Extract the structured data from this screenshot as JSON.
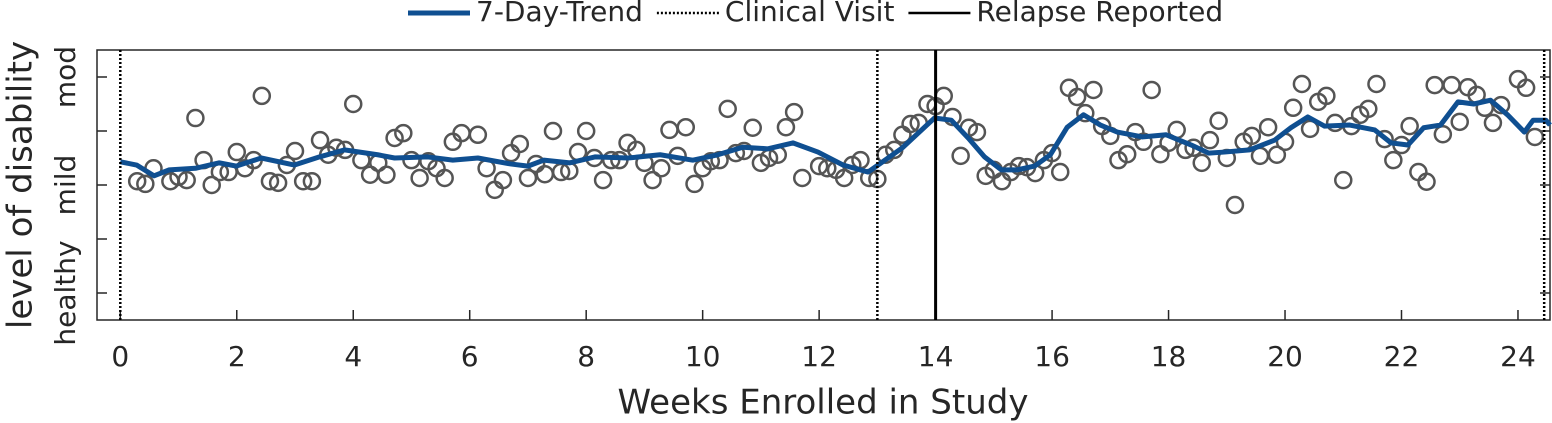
{
  "chart_data": {
    "type": "line",
    "x_label": "Weeks Enrolled in Study",
    "y_label": "level of disability",
    "xlim": [
      -0.4,
      24.55
    ],
    "ylim": [
      -0.5,
      4.5
    ],
    "xticks": [
      0,
      2,
      4,
      6,
      8,
      10,
      12,
      14,
      16,
      18,
      20,
      22,
      24
    ],
    "yticks": [
      {
        "value": 0,
        "label": "healthy"
      },
      {
        "value": 1,
        "label": null
      },
      {
        "value": 2,
        "label": "mild"
      },
      {
        "value": 3,
        "label": null
      },
      {
        "value": 4,
        "label": "mod"
      }
    ],
    "series": [
      {
        "name": "7-Day-Trend",
        "color": "#0f4f91",
        "x": [
          0,
          0.28,
          0.58,
          0.84,
          1.29,
          1.7,
          1.99,
          2.42,
          2.99,
          3.42,
          3.85,
          4.42,
          4.71,
          5.28,
          5.71,
          6.14,
          6.7,
          7.0,
          7.27,
          7.72,
          8.15,
          8.72,
          9.27,
          9.83,
          10.26,
          10.69,
          11.12,
          11.55,
          11.98,
          12.41,
          12.84,
          13.13,
          13.43,
          13.7,
          13.98,
          14.27,
          14.56,
          14.84,
          15.13,
          15.4,
          15.7,
          15.97,
          16.26,
          16.54,
          16.83,
          17.12,
          17.55,
          17.96,
          18.39,
          18.69,
          18.96,
          19.39,
          19.82,
          20.1,
          20.39,
          20.68,
          21.11,
          21.54,
          21.82,
          22.11,
          22.38,
          22.67,
          22.97,
          23.24,
          23.53,
          23.82,
          24.11,
          24.26,
          24.48,
          24.55
        ],
        "values": [
          2.43,
          2.37,
          2.17,
          2.28,
          2.31,
          2.41,
          2.35,
          2.5,
          2.37,
          2.52,
          2.65,
          2.56,
          2.5,
          2.52,
          2.46,
          2.5,
          2.39,
          2.35,
          2.46,
          2.41,
          2.52,
          2.5,
          2.56,
          2.46,
          2.56,
          2.7,
          2.67,
          2.78,
          2.61,
          2.37,
          2.24,
          2.46,
          2.69,
          2.96,
          3.24,
          3.2,
          2.87,
          2.52,
          2.28,
          2.28,
          2.35,
          2.56,
          3.07,
          3.3,
          3.11,
          2.98,
          2.89,
          2.93,
          2.74,
          2.59,
          2.61,
          2.65,
          2.83,
          3.06,
          3.26,
          3.09,
          3.11,
          3.02,
          2.78,
          2.74,
          3.06,
          3.11,
          3.54,
          3.5,
          3.57,
          3.3,
          2.98,
          3.2,
          3.2,
          3.11
        ]
      }
    ],
    "points": {
      "color": "#555555",
      "x": [
        0.29,
        0.43,
        0.57,
        0.86,
        1,
        1.14,
        1.29,
        1.43,
        1.57,
        1.71,
        1.86,
        2,
        2.14,
        2.29,
        2.43,
        2.57,
        2.71,
        2.86,
        3,
        3.14,
        3.29,
        3.43,
        3.57,
        3.71,
        3.86,
        4,
        4.14,
        4.29,
        4.43,
        4.57,
        4.71,
        4.86,
        5,
        5.14,
        5.29,
        5.43,
        5.57,
        5.71,
        5.86,
        6.14,
        6.29,
        6.43,
        6.57,
        6.71,
        6.86,
        7,
        7.14,
        7.29,
        7.43,
        7.57,
        7.71,
        7.86,
        8,
        8.14,
        8.29,
        8.43,
        8.57,
        8.71,
        8.86,
        9,
        9.14,
        9.29,
        9.43,
        9.57,
        9.71,
        9.86,
        10,
        10.14,
        10.29,
        10.43,
        10.57,
        10.71,
        10.86,
        11,
        11.14,
        11.29,
        11.43,
        11.57,
        11.71,
        12,
        12.14,
        12.29,
        12.43,
        12.57,
        12.71,
        12.86,
        13,
        13.14,
        13.29,
        13.43,
        13.57,
        13.71,
        13.86,
        14,
        14.14,
        14.29,
        14.43,
        14.57,
        14.71,
        14.86,
        15,
        15.14,
        15.29,
        15.43,
        15.57,
        15.71,
        15.86,
        16,
        16.14,
        16.29,
        16.43,
        16.57,
        16.71,
        16.86,
        17,
        17.14,
        17.29,
        17.43,
        17.57,
        17.71,
        17.86,
        18,
        18.14,
        18.29,
        18.43,
        18.57,
        18.71,
        18.86,
        19,
        19.14,
        19.29,
        19.43,
        19.57,
        19.71,
        19.86,
        20,
        20.14,
        20.29,
        20.43,
        20.57,
        20.71,
        20.86,
        21,
        21.14,
        21.29,
        21.43,
        21.57,
        21.71,
        21.86,
        22,
        22.14,
        22.29,
        22.43,
        22.57,
        22.71,
        22.86,
        23,
        23.14,
        23.29,
        23.43,
        23.57,
        23.71,
        24,
        24.14,
        24.29
      ],
      "values": [
        2.07,
        2.02,
        2.31,
        2.07,
        2.15,
        2.09,
        3.24,
        2.46,
        2.0,
        2.24,
        2.24,
        2.61,
        2.31,
        2.46,
        3.65,
        2.07,
        2.04,
        2.37,
        2.63,
        2.07,
        2.07,
        2.83,
        2.56,
        2.69,
        2.65,
        3.5,
        2.46,
        2.19,
        2.41,
        2.19,
        2.87,
        2.96,
        2.46,
        2.13,
        2.44,
        2.31,
        2.13,
        2.8,
        2.96,
        2.93,
        2.31,
        1.91,
        2.09,
        2.59,
        2.76,
        2.13,
        2.39,
        2.2,
        3.0,
        2.24,
        2.26,
        2.61,
        3.0,
        2.5,
        2.09,
        2.46,
        2.46,
        2.78,
        2.65,
        2.41,
        2.09,
        2.31,
        3.02,
        2.54,
        3.07,
        2.02,
        2.31,
        2.44,
        2.46,
        3.41,
        2.59,
        2.63,
        3.06,
        2.41,
        2.5,
        2.56,
        3.07,
        3.35,
        2.13,
        2.35,
        2.31,
        2.28,
        2.13,
        2.37,
        2.46,
        2.13,
        2.11,
        2.56,
        2.65,
        2.93,
        3.13,
        3.15,
        3.5,
        3.46,
        3.65,
        3.26,
        2.54,
        3.06,
        2.98,
        2.17,
        2.28,
        2.07,
        2.24,
        2.35,
        2.33,
        2.22,
        2.46,
        2.59,
        2.24,
        3.8,
        3.63,
        3.33,
        3.76,
        3.09,
        2.91,
        2.46,
        2.57,
        2.98,
        2.8,
        3.76,
        2.57,
        2.78,
        3.02,
        2.65,
        2.69,
        2.41,
        2.83,
        3.19,
        2.5,
        1.63,
        2.8,
        2.91,
        2.54,
        3.07,
        2.56,
        2.8,
        3.43,
        3.87,
        3.04,
        3.54,
        3.65,
        3.15,
        2.09,
        3.09,
        3.3,
        3.41,
        3.87,
        2.85,
        2.46,
        2.74,
        3.09,
        2.24,
        2.06,
        3.85,
        2.94,
        3.85,
        3.17,
        3.81,
        3.67,
        3.43,
        3.15,
        3.48,
        3.96,
        3.8,
        2.89
      ]
    },
    "vlines": [
      {
        "name": "Clinical Visit",
        "color": "#000000",
        "style": "dotted",
        "x": [
          0,
          13,
          24.45
        ]
      },
      {
        "name": "Relapse Reported",
        "color": "#000000",
        "style": "solid",
        "x": [
          14
        ]
      }
    ]
  }
}
